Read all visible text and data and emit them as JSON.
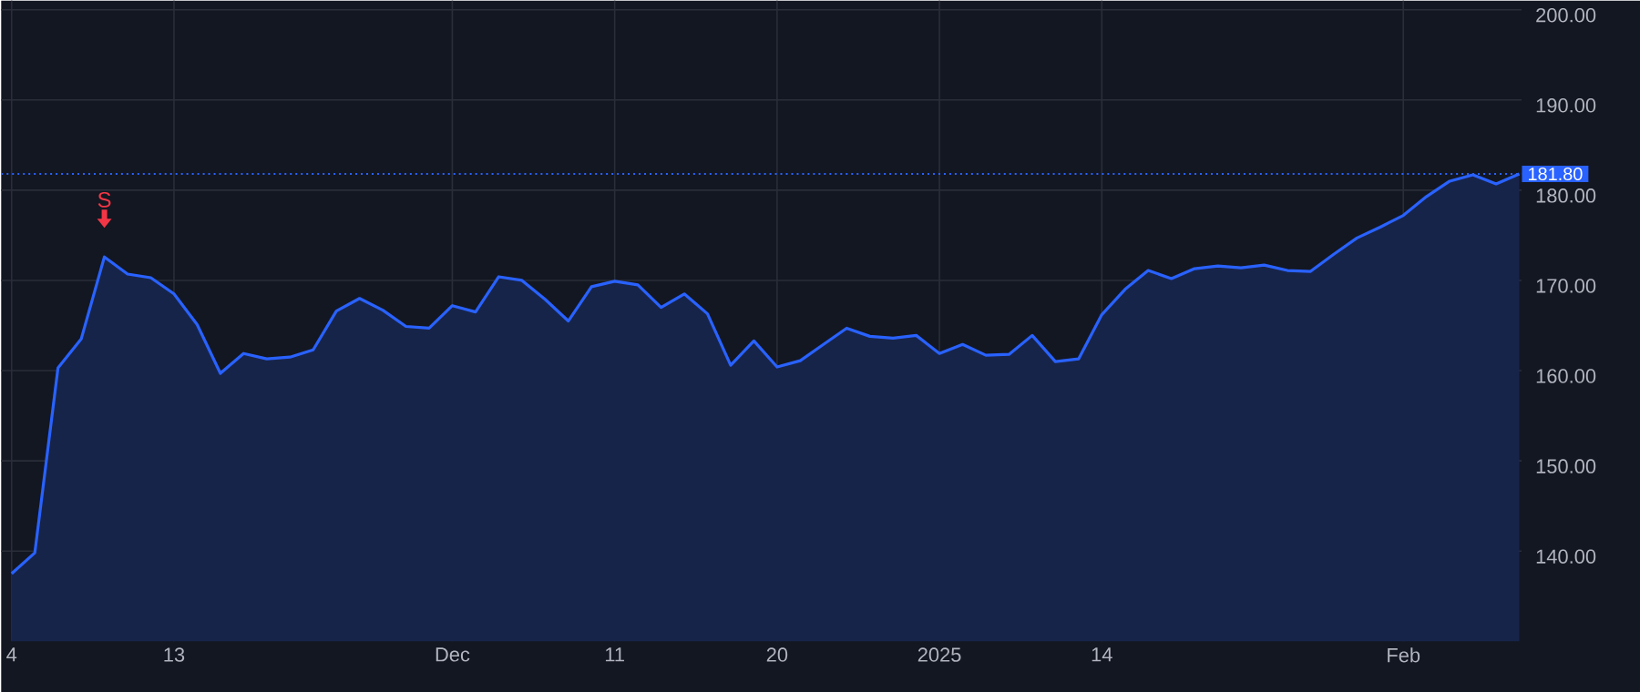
{
  "chart_data": {
    "type": "area",
    "categories": [
      "4",
      null,
      null,
      null,
      null,
      null,
      null,
      "13",
      null,
      null,
      null,
      null,
      null,
      null,
      null,
      null,
      null,
      null,
      null,
      "Dec",
      null,
      null,
      null,
      null,
      null,
      null,
      "11",
      null,
      null,
      null,
      null,
      null,
      null,
      "20",
      null,
      null,
      null,
      null,
      null,
      null,
      "2025",
      null,
      null,
      null,
      null,
      null,
      null,
      "14",
      null,
      null,
      null,
      null,
      null,
      null,
      null,
      null,
      null,
      null,
      null,
      null,
      "Feb",
      null,
      null,
      null,
      null,
      null
    ],
    "series": [
      {
        "color": "#2962ff",
        "values": [
          137.5,
          139.8,
          160.3,
          163.5,
          172.6,
          170.7,
          170.3,
          168.5,
          165.1,
          159.7,
          161.9,
          161.3,
          161.5,
          162.3,
          166.6,
          168.0,
          166.7,
          164.9,
          164.7,
          167.2,
          166.5,
          170.4,
          170.0,
          167.9,
          165.5,
          169.3,
          169.9,
          169.5,
          167.0,
          168.5,
          166.3,
          160.6,
          163.3,
          160.4,
          161.1,
          162.9,
          164.7,
          163.8,
          163.6,
          163.9,
          161.9,
          162.9,
          161.7,
          161.8,
          163.9,
          161.0,
          161.3,
          166.2,
          169.0,
          171.1,
          170.2,
          171.3,
          171.6,
          171.4,
          171.7,
          171.1,
          171.0,
          172.9,
          174.7,
          175.9,
          177.2,
          179.3,
          181.0,
          181.7,
          180.7,
          181.8
        ]
      }
    ],
    "ylim": [
      130,
      201
    ],
    "yticks": [
      {
        "value": 140,
        "label": "140.00"
      },
      {
        "value": 150,
        "label": "150.00"
      },
      {
        "value": 160,
        "label": "160.00"
      },
      {
        "value": 170,
        "label": "170.00"
      },
      {
        "value": 180,
        "label": "180.00"
      },
      {
        "value": 190,
        "label": "190.00"
      },
      {
        "value": 200,
        "label": "200.00"
      }
    ],
    "grid": true,
    "ref_lines": [
      {
        "axis": "y",
        "value": 181.8,
        "label": "181.80",
        "color": "#2962ff",
        "line_style": "dotted"
      }
    ],
    "annotations": [
      "S"
    ]
  }
}
